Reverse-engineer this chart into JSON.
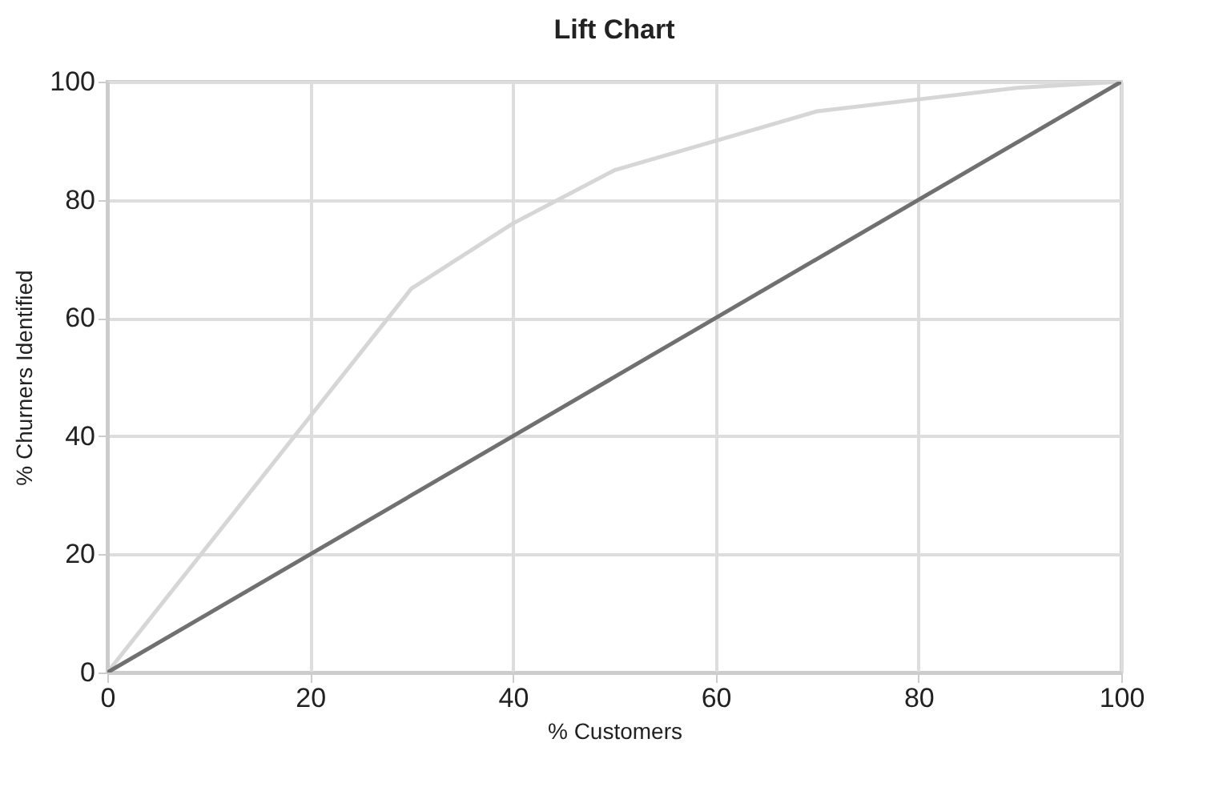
{
  "chart_data": {
    "type": "line",
    "title": "Lift Chart",
    "xlabel": "% Customers",
    "ylabel": "% Churners Identified",
    "xlim": [
      0,
      100
    ],
    "ylim": [
      0,
      100
    ],
    "xticks": [
      0,
      20,
      40,
      60,
      80,
      100
    ],
    "yticks": [
      0,
      20,
      40,
      60,
      80,
      100
    ],
    "grid": true,
    "marker": "none",
    "line_style": "solid",
    "series": [
      {
        "color": "#d6d6d6",
        "x": [
          0,
          30,
          40,
          50,
          60,
          70,
          80,
          90,
          100
        ],
        "values": [
          0,
          65,
          76,
          85,
          90,
          95,
          97,
          99,
          100
        ]
      },
      {
        "color": "#707070",
        "x": [
          0,
          100
        ],
        "values": [
          0,
          100
        ]
      }
    ]
  }
}
